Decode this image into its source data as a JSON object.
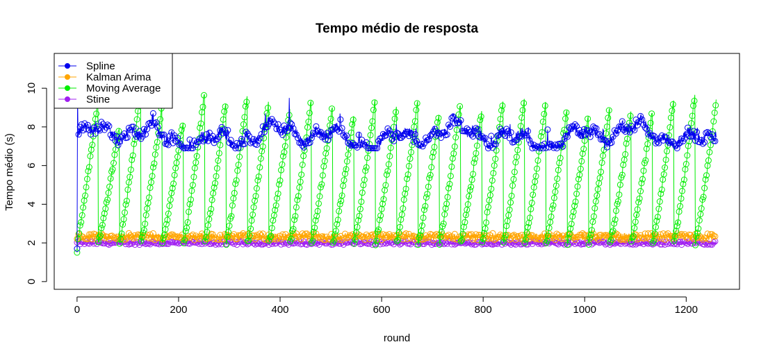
{
  "chart_data": {
    "type": "line",
    "title": "Tempo médio de resposta",
    "xlabel": "round",
    "ylabel": "Tempo médio (s)",
    "xlim": [
      -45,
      1305
    ],
    "ylim": [
      -0.4,
      11.8
    ],
    "x_ticks": [
      0,
      200,
      400,
      600,
      800,
      1000,
      1200
    ],
    "y_ticks": [
      0,
      2,
      4,
      6,
      8,
      10
    ],
    "legend_position": "top-left",
    "n_points": 1260,
    "series": [
      {
        "name": "Spline",
        "color": "#0000ee",
        "pattern": "noisy band between 6.9 and 8.7, mean about 7.5",
        "min": 6.9,
        "max": 8.7,
        "first_value": 9.6,
        "spikes": [
          {
            "x": 418,
            "y": 9.5
          }
        ]
      },
      {
        "name": "Kalman Arima",
        "color": "#ffa500",
        "pattern": "flat noisy band near 2.3",
        "min": 2.1,
        "max": 2.6
      },
      {
        "name": "Moving Average",
        "color": "#00ee00",
        "pattern": "sawtooth: cycles of about 42 rounds rising from 2 to about 9.5 then dropping back",
        "period": 42,
        "low": 2.0,
        "high": 9.5,
        "first_value": 1.5
      },
      {
        "name": "Stine",
        "color": "#a020f0",
        "pattern": "flat noisy band near 2.0",
        "min": 1.9,
        "max": 2.1
      }
    ]
  }
}
